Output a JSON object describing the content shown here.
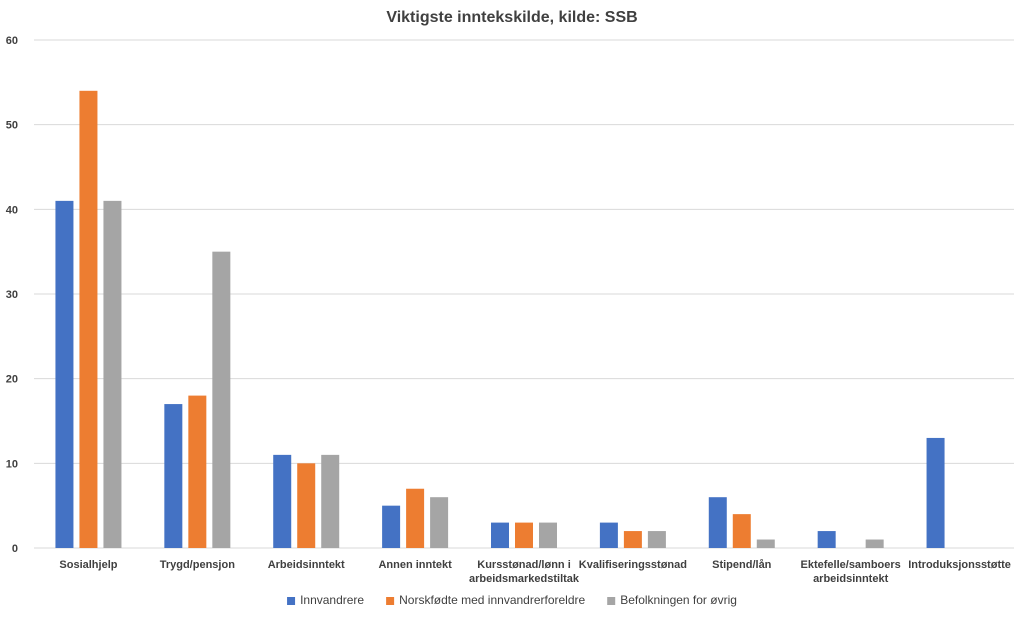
{
  "chart_data": {
    "type": "bar",
    "title": "Viktigste inntekskilde, kilde: SSB",
    "xlabel": "",
    "ylabel": "",
    "ylim": [
      0,
      60
    ],
    "yticks": [
      0,
      10,
      20,
      30,
      40,
      50,
      60
    ],
    "grid": true,
    "legend_position": "bottom",
    "categories": [
      [
        "Sosialhjelp"
      ],
      [
        "Trygd/pensjon"
      ],
      [
        "Arbeidsinntekt"
      ],
      [
        "Annen inntekt"
      ],
      [
        "Kursstønad/lønn i",
        "arbeidsmarkedstiltak"
      ],
      [
        "Kvalifiseringsstønad"
      ],
      [
        "Stipend/lån"
      ],
      [
        "Ektefelle/samboers",
        "arbeidsinntekt"
      ],
      [
        "Introduksjonsstøtte"
      ]
    ],
    "series": [
      {
        "name": "Innvandrere",
        "color": "#4472C4",
        "values": [
          41,
          17,
          11,
          5,
          3,
          3,
          6,
          2,
          13
        ]
      },
      {
        "name": "Norskfødte med innvandrerforeldre",
        "color": "#ED7D31",
        "values": [
          54,
          18,
          10,
          7,
          3,
          2,
          4,
          0,
          0
        ]
      },
      {
        "name": "Befolkningen for øvrig",
        "color": "#A5A5A5",
        "values": [
          41,
          35,
          11,
          6,
          3,
          2,
          1,
          1,
          0
        ]
      }
    ]
  }
}
